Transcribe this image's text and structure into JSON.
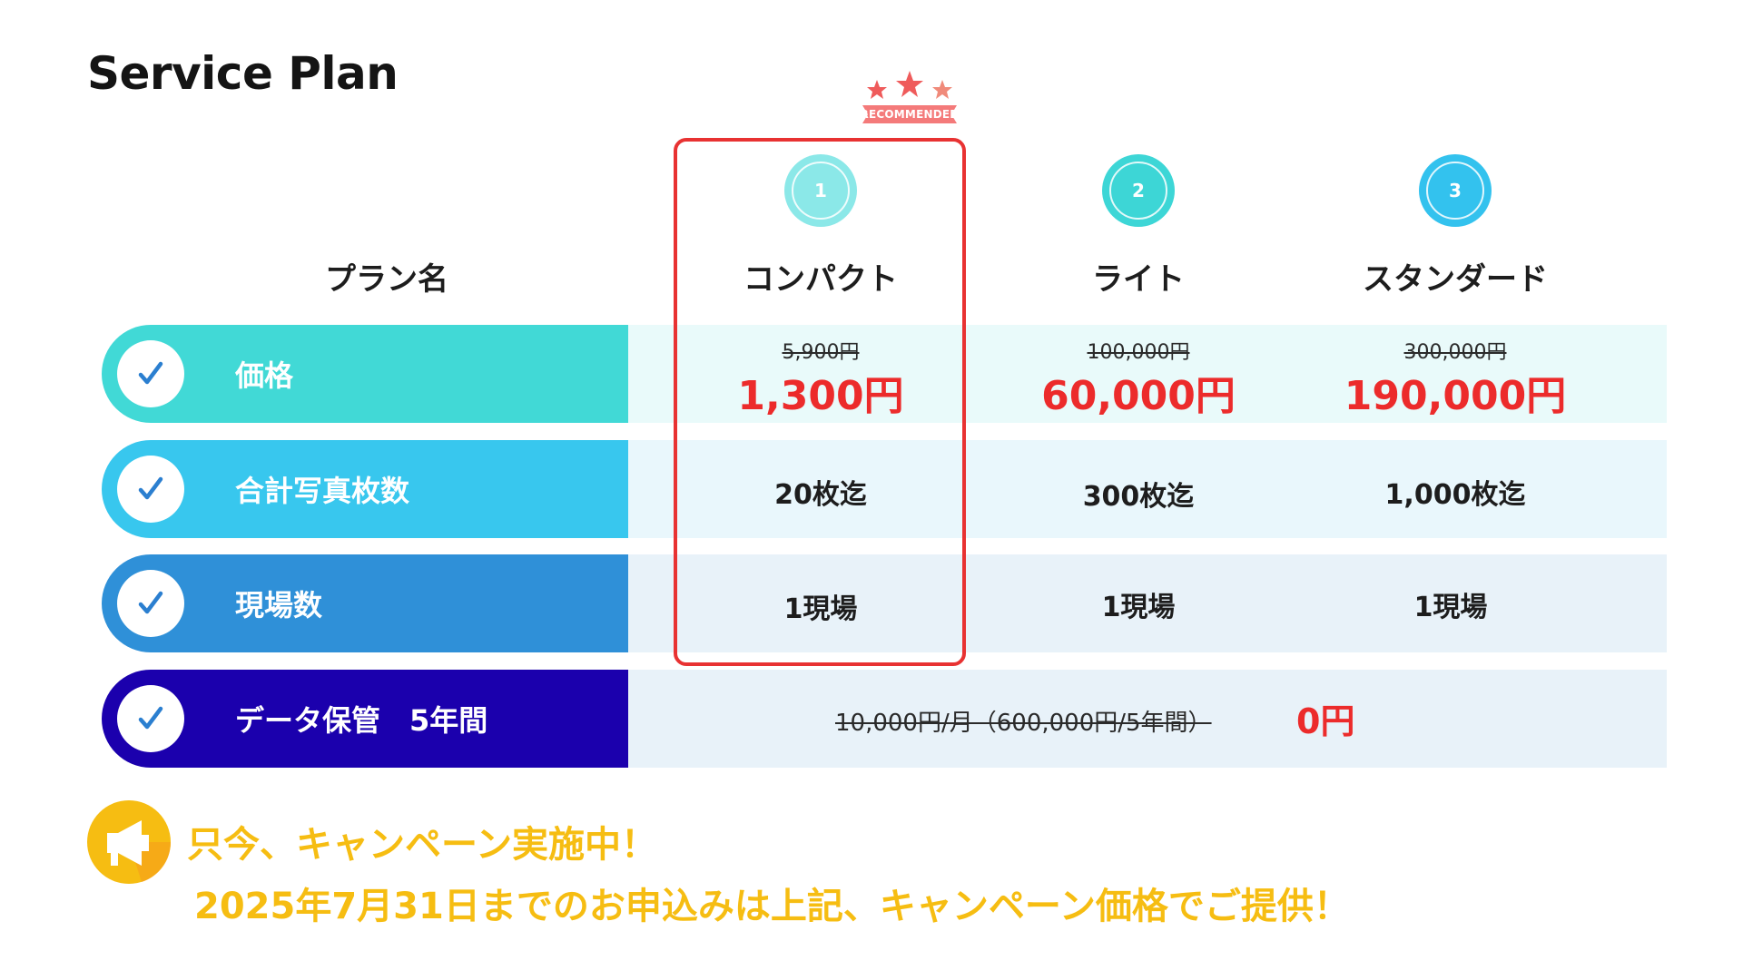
{
  "title": "Service Plan",
  "badge": {
    "text": "RECOMMENDED"
  },
  "header_label": "プラン名",
  "plans": [
    {
      "number": "1",
      "name": "コンパクト",
      "old_price": "5,900円",
      "price": "1,300円",
      "photos": "20枚迄",
      "sites": "1現場",
      "circle_color": "#8be8e8"
    },
    {
      "number": "2",
      "name": "ライト",
      "old_price": "100,000円",
      "price": "60,000円",
      "photos": "300枚迄",
      "sites": "1現場",
      "circle_color": "#3dd6d6"
    },
    {
      "number": "3",
      "name": "スタンダード",
      "old_price": "300,000円",
      "price": "190,000円",
      "photos": "1,000枚迄",
      "sites": "1現場",
      "circle_color": "#33c2ee"
    }
  ],
  "rows": [
    {
      "label": "価格",
      "color": "#41d9d6",
      "bg": "#e9fafa"
    },
    {
      "label": "合計写真枚数",
      "color": "#38c7ee",
      "bg": "#e9f7fc"
    },
    {
      "label": "現場数",
      "color": "#2f90d8",
      "bg": "#e8f2f9"
    },
    {
      "label": "データ保管　5年間",
      "color": "#1b00ad",
      "bg": "#e8f2f9"
    }
  ],
  "storage": {
    "old": "10,000円/月（600,000円/5年間）",
    "new": "0円"
  },
  "campaign": {
    "line1": "只今、キャンペーン実施中！",
    "line2": "2025年7月31日までのお申込みは上記、キャンペーン価格でご提供！",
    "icon": "megaphone-icon"
  },
  "colors": {
    "accent_red": "#ec2b2b",
    "campaign_yellow": "#f6bd12",
    "highlight_border": "#e83232"
  }
}
